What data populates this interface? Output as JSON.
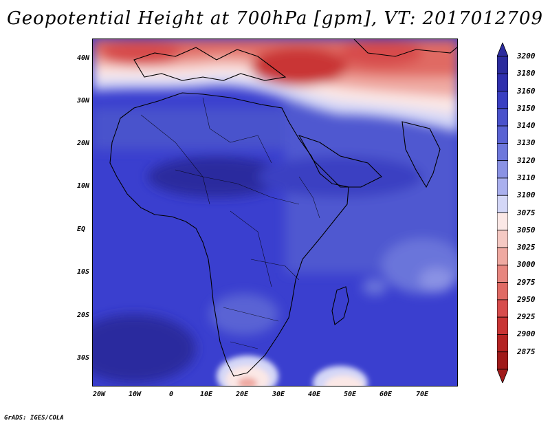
{
  "title": "Geopotential Height at 700hPa [gpm], VT: 2017012709",
  "credit": "GrADS: IGES/COLA",
  "lat_labels": [
    "40N",
    "30N",
    "20N",
    "10N",
    "EQ",
    "10S",
    "20S",
    "30S"
  ],
  "lon_labels": [
    "20W",
    "10W",
    "0",
    "10E",
    "20E",
    "30E",
    "40E",
    "50E",
    "60E",
    "70E"
  ],
  "colorbar": {
    "levels": [
      "3200",
      "3180",
      "3160",
      "3150",
      "3140",
      "3130",
      "3120",
      "3110",
      "3100",
      "3075",
      "3050",
      "3025",
      "3000",
      "2975",
      "2950",
      "2925",
      "2900",
      "2875"
    ],
    "colors": [
      "#2b2b9e",
      "#2f2fae",
      "#3a3fc2",
      "#4a52cc",
      "#5a63d4",
      "#6e78dc",
      "#8a92e4",
      "#aab0ee",
      "#d4d7f7",
      "#fbe8e6",
      "#f5c9c3",
      "#efa9a1",
      "#e7867f",
      "#e06a64",
      "#d74c4c",
      "#c93434",
      "#b52323",
      "#a01a1a"
    ]
  }
}
